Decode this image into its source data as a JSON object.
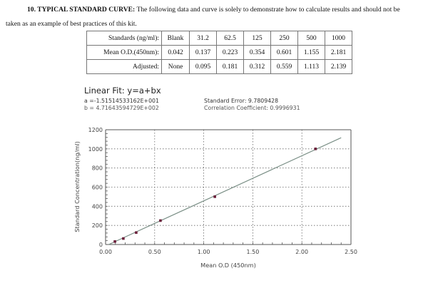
{
  "heading": {
    "section_label": "10. TYPICAL STANDARD CURVE:",
    "text_line1": " The following data and curve is solely to demonstrate how to calculate results and should not be",
    "text_line2": "taken as an example of best practices of this kit."
  },
  "table": {
    "rows": [
      {
        "label": "Standards (ng/ml):",
        "cells": [
          "Blank",
          "31.2",
          "62.5",
          "125",
          "250",
          "500",
          "1000"
        ]
      },
      {
        "label": "Mean O.D.(450nm):",
        "cells": [
          "0.042",
          "0.137",
          "0.223",
          "0.354",
          "0.601",
          "1.155",
          "2.181"
        ]
      },
      {
        "label": "Adjusted:",
        "cells": [
          "None",
          "0.095",
          "0.181",
          "0.312",
          "0.559",
          "1.113",
          "2.139"
        ]
      }
    ]
  },
  "fit": {
    "title": "Linear Fit: y=a+bx",
    "a": "a =-1.51514533162E+001",
    "b": "b = 4.71643594729E+002",
    "standard_error": "Standard Error: 9.7809428",
    "correlation": "Correlation Coefficient: 0.9996931"
  },
  "chart_data": {
    "type": "scatter",
    "title": "",
    "xlabel": "Mean O.D (450nm)",
    "ylabel": "Standard Concentration(ng/ml)",
    "xlim": [
      0,
      2.5
    ],
    "ylim": [
      0,
      1200
    ],
    "x_ticks": [
      "0.00",
      "0.50",
      "1.00",
      "1.50",
      "2.00",
      "2.50"
    ],
    "y_ticks": [
      "0",
      "200",
      "400",
      "600",
      "800",
      "1000",
      "1200"
    ],
    "grid": true,
    "series": [
      {
        "name": "Standards",
        "x": [
          0.095,
          0.181,
          0.312,
          0.559,
          1.113,
          2.139
        ],
        "y": [
          31.2,
          62.5,
          125,
          250,
          500,
          1000
        ]
      },
      {
        "name": "Linear Fit",
        "type": "line",
        "a": -15.1514533162,
        "b": 471.643594729,
        "x_range": [
          0.032,
          2.4
        ]
      }
    ],
    "colors": {
      "line": "#7a8f86",
      "points": "#6b1f3a",
      "grid": "#666666",
      "axis": "#555555"
    }
  }
}
